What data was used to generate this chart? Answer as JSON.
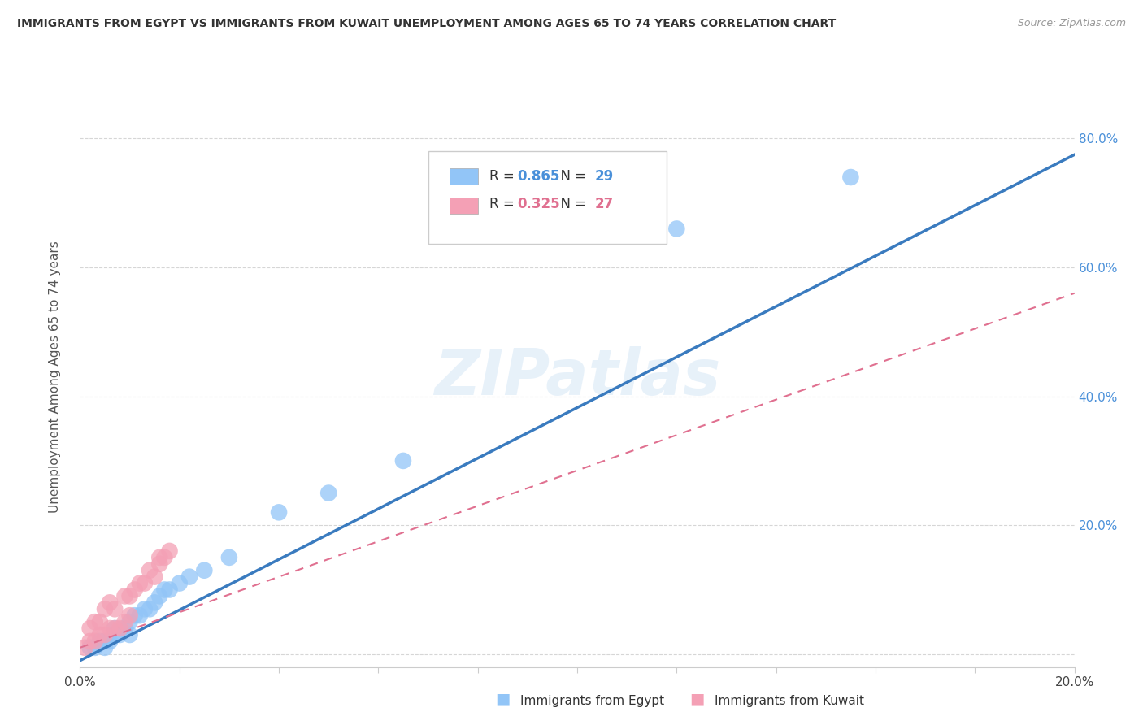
{
  "title": "IMMIGRANTS FROM EGYPT VS IMMIGRANTS FROM KUWAIT UNEMPLOYMENT AMONG AGES 65 TO 74 YEARS CORRELATION CHART",
  "source": "Source: ZipAtlas.com",
  "ylabel": "Unemployment Among Ages 65 to 74 years",
  "xlim": [
    0.0,
    0.2
  ],
  "ylim": [
    -0.02,
    0.88
  ],
  "egypt_R": 0.865,
  "egypt_N": 29,
  "kuwait_R": 0.325,
  "kuwait_N": 27,
  "egypt_color": "#92C5F7",
  "kuwait_color": "#F4A0B5",
  "egypt_line_color": "#3a7bbf",
  "kuwait_line_color": "#e07090",
  "watermark": "ZIPatlas",
  "background_color": "#ffffff",
  "egypt_scatter_x": [
    0.002,
    0.003,
    0.004,
    0.005,
    0.005,
    0.006,
    0.007,
    0.007,
    0.008,
    0.009,
    0.01,
    0.01,
    0.011,
    0.012,
    0.013,
    0.014,
    0.015,
    0.016,
    0.017,
    0.018,
    0.02,
    0.022,
    0.025,
    0.03,
    0.04,
    0.05,
    0.065,
    0.12,
    0.155
  ],
  "egypt_scatter_y": [
    0.01,
    0.01,
    0.02,
    0.01,
    0.02,
    0.02,
    0.03,
    0.04,
    0.03,
    0.04,
    0.03,
    0.05,
    0.06,
    0.06,
    0.07,
    0.07,
    0.08,
    0.09,
    0.1,
    0.1,
    0.11,
    0.12,
    0.13,
    0.15,
    0.22,
    0.25,
    0.3,
    0.66,
    0.74
  ],
  "kuwait_scatter_x": [
    0.001,
    0.002,
    0.002,
    0.003,
    0.003,
    0.004,
    0.004,
    0.005,
    0.005,
    0.006,
    0.006,
    0.007,
    0.007,
    0.008,
    0.009,
    0.009,
    0.01,
    0.01,
    0.011,
    0.012,
    0.013,
    0.014,
    0.015,
    0.016,
    0.016,
    0.017,
    0.018
  ],
  "kuwait_scatter_y": [
    0.01,
    0.02,
    0.04,
    0.02,
    0.05,
    0.03,
    0.05,
    0.03,
    0.07,
    0.04,
    0.08,
    0.04,
    0.07,
    0.04,
    0.05,
    0.09,
    0.06,
    0.09,
    0.1,
    0.11,
    0.11,
    0.13,
    0.12,
    0.14,
    0.15,
    0.15,
    0.16
  ],
  "egypt_line_x0": 0.0,
  "egypt_line_x1": 0.2,
  "egypt_line_y0": -0.01,
  "egypt_line_y1": 0.775,
  "kuwait_line_x0": 0.0,
  "kuwait_line_x1": 0.2,
  "kuwait_line_y0": 0.01,
  "kuwait_line_y1": 0.56
}
